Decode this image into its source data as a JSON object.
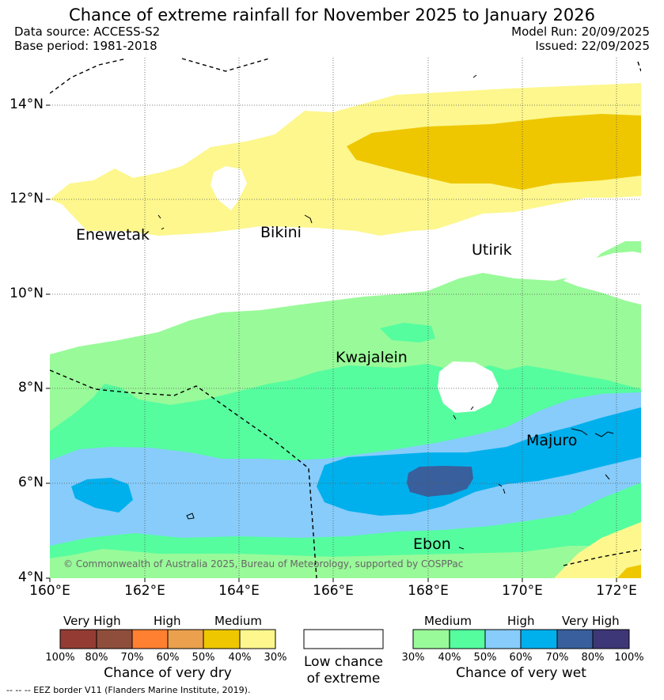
{
  "title": "Chance of extreme rainfall for November 2025 to January 2026",
  "data_source": "Data source: ACCESS-S2",
  "base_period": "Base period: 1981-2018",
  "model_run": "Model Run: 20/09/2025",
  "issued": "Issued: 22/09/2025",
  "copyright": "© Commonwealth of Australia 2025, Bureau of Meteorology, supported by COSPPac",
  "places": [
    "Enewetak",
    "Bikini",
    "Utirik",
    "Kwajalein",
    "Majuro",
    "Ebon"
  ],
  "lat_ticks": [
    "14°N",
    "12°N",
    "10°N",
    "8°N",
    "6°N",
    "4°N"
  ],
  "lon_ticks": [
    "160°E",
    "162°E",
    "164°E",
    "166°E",
    "168°E",
    "170°E",
    "172°E"
  ],
  "dry_legend": {
    "headers": [
      "Very High",
      "High",
      "Medium"
    ],
    "percents": [
      "100%",
      "80%",
      "70%",
      "60%",
      "50%",
      "40%",
      "30%"
    ],
    "colors": [
      "#943c33",
      "#8f4e3c",
      "#ff8030",
      "#eba04d",
      "#eec700",
      "#fdf78d"
    ],
    "title": "Chance of very dry"
  },
  "low_legend": {
    "line1": "Low chance",
    "line2": "of extreme"
  },
  "wet_legend": {
    "headers": [
      "Medium",
      "High",
      "Very High"
    ],
    "percents": [
      "30%",
      "40%",
      "50%",
      "60%",
      "70%",
      "80%",
      "100%"
    ],
    "colors": [
      "#99fa99",
      "#55fd9f",
      "#87ccfb",
      "#00b0ec",
      "#395f9c",
      "#3d3777"
    ],
    "title": "Chance of very wet"
  },
  "eez_note": "-- -- -- EEZ border V11 (Flanders Marine Institute, 2019)."
}
